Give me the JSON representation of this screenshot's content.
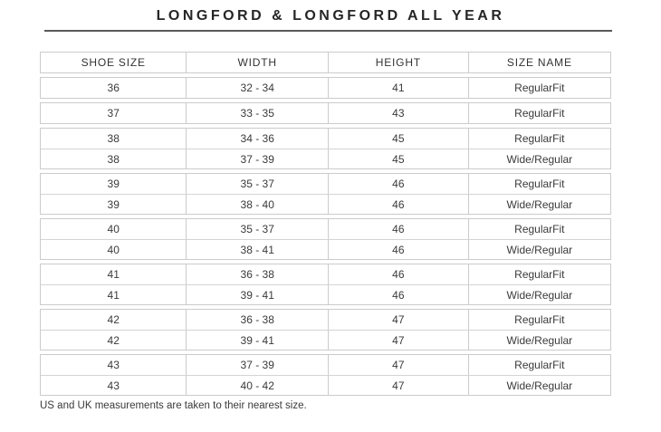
{
  "title": "LONGFORD & LONGFORD ALL YEAR",
  "footnote": "US and UK measurements are taken to their nearest size.",
  "colors": {
    "title_text": "#262626",
    "title_rule": "#595959",
    "table_border": "#cbcbcb",
    "row_divider": "#d4d4d4",
    "cell_text": "#3a3a3a",
    "background": "#ffffff"
  },
  "table": {
    "columns": [
      "SHOE SIZE",
      "WIDTH",
      "HEIGHT",
      "SIZE NAME"
    ],
    "groups": [
      {
        "rows": [
          [
            "36",
            "32 - 34",
            "41",
            "RegularFit"
          ]
        ]
      },
      {
        "rows": [
          [
            "37",
            "33 - 35",
            "43",
            "RegularFit"
          ]
        ]
      },
      {
        "rows": [
          [
            "38",
            "34 - 36",
            "45",
            "RegularFit"
          ],
          [
            "38",
            "37 - 39",
            "45",
            "Wide/Regular"
          ]
        ]
      },
      {
        "rows": [
          [
            "39",
            "35 - 37",
            "46",
            "RegularFit"
          ],
          [
            "39",
            "38 - 40",
            "46",
            "Wide/Regular"
          ]
        ]
      },
      {
        "rows": [
          [
            "40",
            "35 - 37",
            "46",
            "RegularFit"
          ],
          [
            "40",
            "38 - 41",
            "46",
            "Wide/Regular"
          ]
        ]
      },
      {
        "rows": [
          [
            "41",
            "36 - 38",
            "46",
            "RegularFit"
          ],
          [
            "41",
            "39 - 41",
            "46",
            "Wide/Regular"
          ]
        ]
      },
      {
        "rows": [
          [
            "42",
            "36 - 38",
            "47",
            "RegularFit"
          ],
          [
            "42",
            "39 - 41",
            "47",
            "Wide/Regular"
          ]
        ]
      },
      {
        "rows": [
          [
            "43",
            "37 - 39",
            "47",
            "RegularFit"
          ],
          [
            "43",
            "40 - 42",
            "47",
            "Wide/Regular"
          ]
        ]
      }
    ]
  }
}
